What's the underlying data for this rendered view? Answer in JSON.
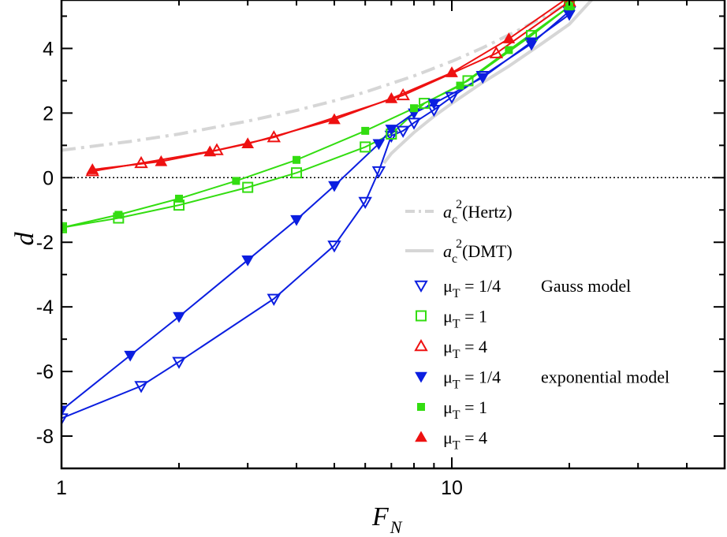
{
  "chart_data": {
    "type": "scatter",
    "title": "",
    "xlabel": "F",
    "xlabel_sub": "N",
    "ylabel": "d",
    "xscale": "log",
    "xlim": [
      1,
      50
    ],
    "ylim": [
      -9,
      5.5
    ],
    "x_ticks": [
      {
        "value": 1,
        "label": "1"
      },
      {
        "value": 10,
        "label": "10"
      }
    ],
    "y_ticks": [
      {
        "value": -8,
        "label": "-8"
      },
      {
        "value": -6,
        "label": "-6"
      },
      {
        "value": -4,
        "label": "-4"
      },
      {
        "value": -2,
        "label": "-2"
      },
      {
        "value": 0,
        "label": "0"
      },
      {
        "value": 2,
        "label": "2"
      },
      {
        "value": 4,
        "label": "4"
      }
    ],
    "zero_line": true,
    "legend_position": "right",
    "reference_curves": [
      {
        "name": "Hertz",
        "legend_label": "(Hertz)",
        "legend_math": "a",
        "legend_sub": "c",
        "legend_sup": "2",
        "style": "dash-dot",
        "color": "#d6d6d6",
        "x": [
          1,
          1.5,
          2,
          3,
          4,
          5,
          6,
          8,
          10,
          12,
          15,
          18,
          22
        ],
        "y": [
          0.85,
          1.12,
          1.35,
          1.75,
          2.08,
          2.38,
          2.65,
          3.15,
          3.6,
          4.02,
          4.6,
          5.1,
          5.75
        ]
      },
      {
        "name": "DMT",
        "legend_label": "(DMT)",
        "legend_math": "a",
        "legend_sub": "c",
        "legend_sup": "2",
        "style": "solid",
        "color": "#d6d6d6",
        "x": [
          6.7,
          7,
          8,
          9,
          10,
          12,
          14,
          17,
          20,
          23
        ],
        "y": [
          0.45,
          0.75,
          1.4,
          1.9,
          2.3,
          2.95,
          3.45,
          4.15,
          4.75,
          5.55
        ]
      }
    ],
    "series": [
      {
        "name": "μT = 1/4 Gauss",
        "legend_mu": "μ",
        "legend_sub": "T",
        "legend_value": " = 1/4",
        "legend_model": "Gauss model",
        "color": "#0b1ee0",
        "marker": "triangle-down",
        "filled": false,
        "x": [
          1,
          1.6,
          2,
          3.5,
          5,
          6,
          6.5,
          7,
          7.5,
          8,
          9,
          10,
          12,
          16,
          20
        ],
        "y": [
          -7.45,
          -6.45,
          -5.7,
          -3.75,
          -2.1,
          -0.75,
          0.2,
          1.3,
          1.45,
          1.7,
          2.1,
          2.5,
          3.15,
          4.15,
          5.15
        ]
      },
      {
        "name": "μT = 1 Gauss",
        "legend_mu": "μ",
        "legend_sub": "T",
        "legend_value": " = 1",
        "legend_model": "",
        "color": "#33dd11",
        "marker": "square",
        "filled": false,
        "x": [
          1,
          1.4,
          2,
          3,
          4,
          6,
          7,
          8.5,
          11,
          16,
          20
        ],
        "y": [
          -1.55,
          -1.25,
          -0.85,
          -0.3,
          0.15,
          0.95,
          1.35,
          2.3,
          3.0,
          4.4,
          5.3
        ]
      },
      {
        "name": "μT = 4 Gauss",
        "legend_mu": "μ",
        "legend_sub": "T",
        "legend_value": " = 4",
        "legend_model": "",
        "color": "#ee1111",
        "marker": "triangle-up",
        "filled": false,
        "x": [
          1.2,
          1.6,
          2.5,
          3.5,
          7.5,
          13,
          20
        ],
        "y": [
          0.2,
          0.45,
          0.85,
          1.25,
          2.55,
          3.85,
          5.45
        ]
      },
      {
        "name": "μT = 1/4 exponential",
        "legend_mu": "μ",
        "legend_sub": "T",
        "legend_value": " = 1/4",
        "legend_model": "exponential model",
        "color": "#0b1ee0",
        "marker": "triangle-down",
        "filled": true,
        "x": [
          1,
          1.5,
          2,
          3,
          4,
          5,
          6.5,
          7,
          8,
          9,
          12,
          16,
          20
        ],
        "y": [
          -7.2,
          -5.5,
          -4.3,
          -2.55,
          -1.3,
          -0.25,
          1.05,
          1.5,
          2.0,
          2.3,
          3.1,
          4.2,
          5.05
        ]
      },
      {
        "name": "μT = 1 exponential",
        "legend_mu": "μ",
        "legend_sub": "T",
        "legend_value": " = 1",
        "legend_model": "",
        "color": "#33dd11",
        "marker": "square",
        "filled": true,
        "x": [
          1,
          1.4,
          2,
          2.8,
          4,
          6,
          8,
          10.5,
          14,
          20
        ],
        "y": [
          -1.55,
          -1.15,
          -0.65,
          -0.1,
          0.55,
          1.45,
          2.15,
          2.85,
          3.95,
          5.3
        ]
      },
      {
        "name": "μT = 4 exponential",
        "legend_mu": "μ",
        "legend_sub": "T",
        "legend_value": " = 4",
        "legend_model": "",
        "color": "#ee1111",
        "marker": "triangle-up",
        "filled": true,
        "x": [
          1.2,
          1.8,
          2.4,
          3,
          5,
          7,
          10,
          14,
          20
        ],
        "y": [
          0.25,
          0.5,
          0.8,
          1.05,
          1.8,
          2.45,
          3.25,
          4.3,
          5.6
        ]
      }
    ]
  }
}
